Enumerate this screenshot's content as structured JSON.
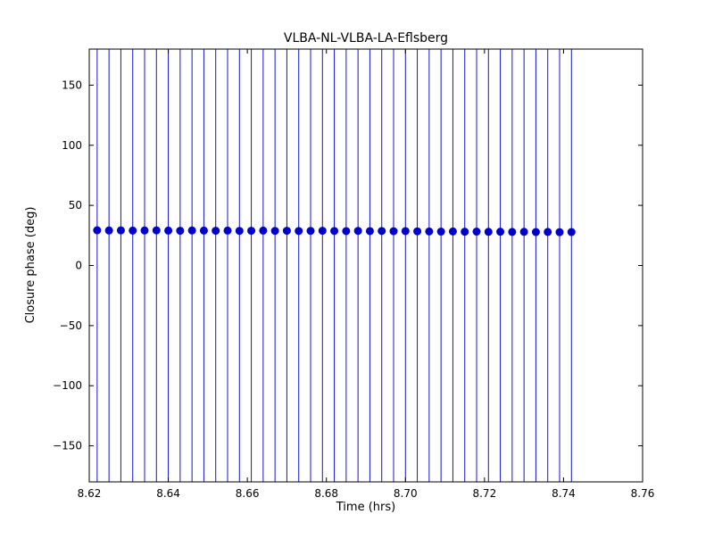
{
  "chart_data": {
    "type": "scatter",
    "title": "VLBA-NL-VLBA-LA-Eflsberg",
    "xlabel": "Time (hrs)",
    "ylabel": "Closure phase (deg)",
    "xlim": [
      8.62,
      8.76
    ],
    "ylim": [
      -180,
      180
    ],
    "x_ticks": [
      8.62,
      8.64,
      8.66,
      8.68,
      8.7,
      8.72,
      8.74,
      8.76
    ],
    "x_tick_labels": [
      "8.62",
      "8.64",
      "8.66",
      "8.68",
      "8.70",
      "8.72",
      "8.74",
      "8.76"
    ],
    "y_ticks": [
      -150,
      -100,
      -50,
      0,
      50,
      100,
      150
    ],
    "y_tick_labels": [
      "−150",
      "−100",
      "−50",
      "0",
      "50",
      "100",
      "150"
    ],
    "grid": false,
    "legend": "none",
    "marker_color": "#0000cd",
    "errorbar_color": "#1515cc",
    "error_bars_clipped_full_height": true,
    "x": [
      8.622,
      8.625,
      8.628,
      8.631,
      8.634,
      8.637,
      8.64,
      8.643,
      8.646,
      8.649,
      8.652,
      8.655,
      8.658,
      8.661,
      8.664,
      8.667,
      8.67,
      8.673,
      8.676,
      8.679,
      8.682,
      8.685,
      8.688,
      8.691,
      8.694,
      8.697,
      8.7,
      8.703,
      8.706,
      8.709,
      8.712,
      8.715,
      8.718,
      8.721,
      8.724,
      8.727,
      8.73,
      8.733,
      8.736,
      8.739,
      8.742
    ],
    "y": [
      29.3,
      29.1,
      29.2,
      29.0,
      29.1,
      29.2,
      29.0,
      28.9,
      29.1,
      29.0,
      28.9,
      29.0,
      28.8,
      28.9,
      29.0,
      28.8,
      28.9,
      28.7,
      28.8,
      28.9,
      28.7,
      28.6,
      28.8,
      28.6,
      28.7,
      28.5,
      28.6,
      28.4,
      28.3,
      28.2,
      28.3,
      28.1,
      28.2,
      28.0,
      28.1,
      27.9,
      28.0,
      27.8,
      27.9,
      27.7,
      27.8
    ]
  }
}
